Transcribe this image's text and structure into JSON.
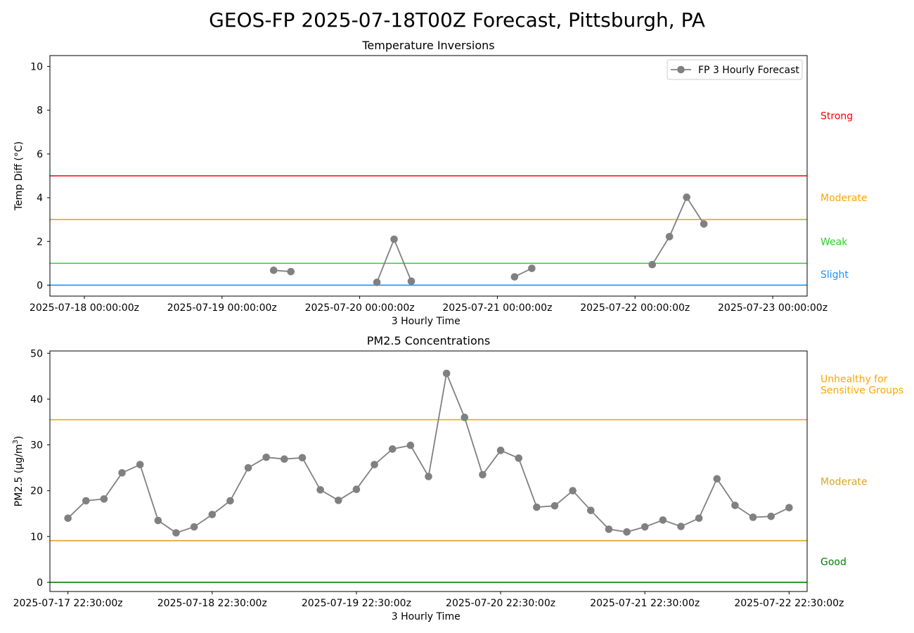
{
  "page": {
    "title": "GEOS-FP 2025-07-18T00Z Forecast, Pittsburgh, PA"
  },
  "chart_data": [
    {
      "id": "inversion",
      "type": "line",
      "title": "Temperature Inversions",
      "xlabel": "3 Hourly Time",
      "ylabel": "Temp Diff (°C)",
      "x_unit": "hours since 2025-07-18 00:00:00z",
      "xlim": [
        -6,
        126
      ],
      "ylim": [
        -0.5,
        10.5
      ],
      "yticks": [
        0,
        2,
        4,
        6,
        8,
        10
      ],
      "xticks": [
        {
          "x": 0,
          "label": "2025-07-18 00:00:00z"
        },
        {
          "x": 24,
          "label": "2025-07-19 00:00:00z"
        },
        {
          "x": 48,
          "label": "2025-07-20 00:00:00z"
        },
        {
          "x": 72,
          "label": "2025-07-21 00:00:00z"
        },
        {
          "x": 96,
          "label": "2025-07-22 00:00:00z"
        },
        {
          "x": 120,
          "label": "2025-07-23 00:00:00z"
        }
      ],
      "legend": {
        "label": "FP 3 Hourly Forecast",
        "position": "top-right"
      },
      "series_color": "#808080",
      "segments": [
        [
          [
            33,
            0.68
          ],
          [
            36,
            0.62
          ]
        ],
        [
          [
            51,
            0.13
          ],
          [
            54,
            2.1
          ],
          [
            57,
            0.18
          ]
        ],
        [
          [
            75,
            0.38
          ],
          [
            78,
            0.77
          ]
        ],
        [
          [
            99,
            0.94
          ],
          [
            102,
            2.22
          ],
          [
            105,
            4.02
          ],
          [
            108,
            2.8
          ]
        ]
      ],
      "thresholds": [
        {
          "y": 0,
          "color": "#1e90ff",
          "label": "Slight",
          "label_y": 0.5
        },
        {
          "y": 1,
          "color": "#32cd32",
          "label": "Weak",
          "label_y": 2.0
        },
        {
          "y": 3,
          "color": "#ffa500",
          "label": "Moderate",
          "label_y": 4.0
        },
        {
          "y": 5,
          "color": "#ff0000",
          "label": "Strong",
          "label_y": 7.75
        }
      ]
    },
    {
      "id": "pm25",
      "type": "line",
      "title": "PM2.5 Concentrations",
      "xlabel": "3 Hourly Time",
      "ylabel": "PM2.5 (µg/m³)",
      "ylabel_main": "PM2.5 (µg/m",
      "ylabel_sup": "3",
      "ylabel_end": ")",
      "x_unit": "hours since 2025-07-17 22:30:00z",
      "xlim": [
        -3,
        123
      ],
      "ylim": [
        -2,
        50.5
      ],
      "yticks": [
        0,
        10,
        20,
        30,
        40,
        50
      ],
      "xticks": [
        {
          "x": 0,
          "label": "2025-07-17 22:30:00z"
        },
        {
          "x": 24,
          "label": "2025-07-18 22:30:00z"
        },
        {
          "x": 48,
          "label": "2025-07-19 22:30:00z"
        },
        {
          "x": 72,
          "label": "2025-07-20 22:30:00z"
        },
        {
          "x": 96,
          "label": "2025-07-21 22:30:00z"
        },
        {
          "x": 120,
          "label": "2025-07-22 22:30:00z"
        }
      ],
      "series_color": "#808080",
      "values": [
        14.0,
        17.8,
        18.2,
        23.9,
        25.7,
        13.5,
        10.8,
        12.1,
        14.8,
        17.8,
        25.0,
        27.3,
        26.9,
        27.2,
        20.2,
        17.9,
        20.3,
        25.7,
        29.1,
        29.9,
        23.1,
        45.6,
        36.0,
        23.5,
        28.8,
        27.1,
        16.4,
        16.7,
        20.0,
        15.7,
        11.6,
        11.0,
        12.1,
        13.6,
        12.2,
        14.0,
        22.6,
        16.8,
        14.2,
        14.4,
        16.3
      ],
      "x_step": 3,
      "thresholds": [
        {
          "y": 0,
          "color": "#008000",
          "label": "Good",
          "label_y": 4.5
        },
        {
          "y": 9.1,
          "color": "#daa520",
          "label": "Moderate",
          "label_y": 22.0
        },
        {
          "y": 35.5,
          "color": "#ffa500",
          "label": "Unhealthy for\nSensitive Groups",
          "label_y": 43.2
        }
      ]
    }
  ]
}
